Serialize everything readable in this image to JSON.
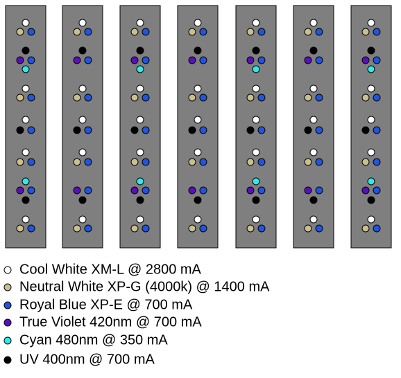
{
  "legend": [
    "Cool White XM-L @ 2800 mA",
    "Neutral White XP-G (4000k) @ 1400 mA",
    "Royal Blue XP-E @ 700 mA",
    "True Violet 420nm @ 700 mA",
    "Cyan 480nm @ 350 mA",
    "UV 400nm @ 700 mA"
  ]
}
